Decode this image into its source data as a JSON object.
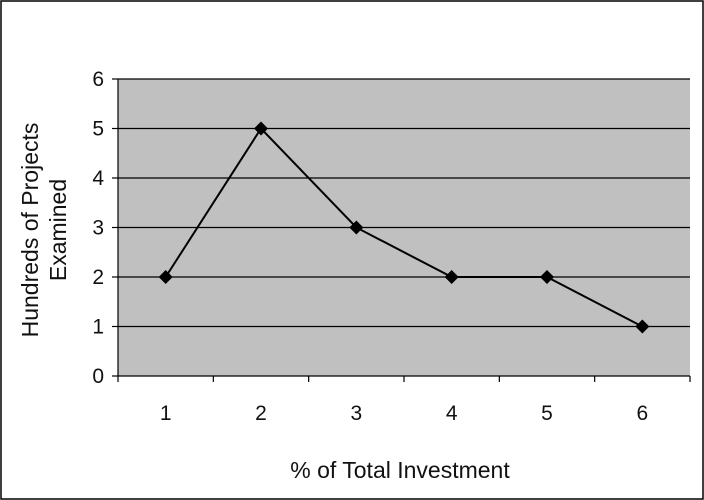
{
  "chart_data": {
    "type": "line",
    "title": "",
    "xlabel": "% of Total Investment",
    "ylabel": "Hundreds of Projects Examined",
    "ylabel_lines": [
      "Hundreds of Projects",
      "Examined"
    ],
    "categories": [
      "1",
      "2",
      "3",
      "4",
      "5",
      "6"
    ],
    "values": [
      2,
      5,
      3,
      2,
      2,
      1
    ],
    "ylim": [
      0,
      6
    ],
    "yticks": [
      "0",
      "1",
      "2",
      "3",
      "4",
      "5",
      "6"
    ],
    "grid": true,
    "legend": "none",
    "marker": "diamond",
    "colors": {
      "plot_background": "#c0c0c0",
      "line": "#000000",
      "marker": "#000000",
      "grid": "#000000",
      "frame": "#000000"
    }
  }
}
